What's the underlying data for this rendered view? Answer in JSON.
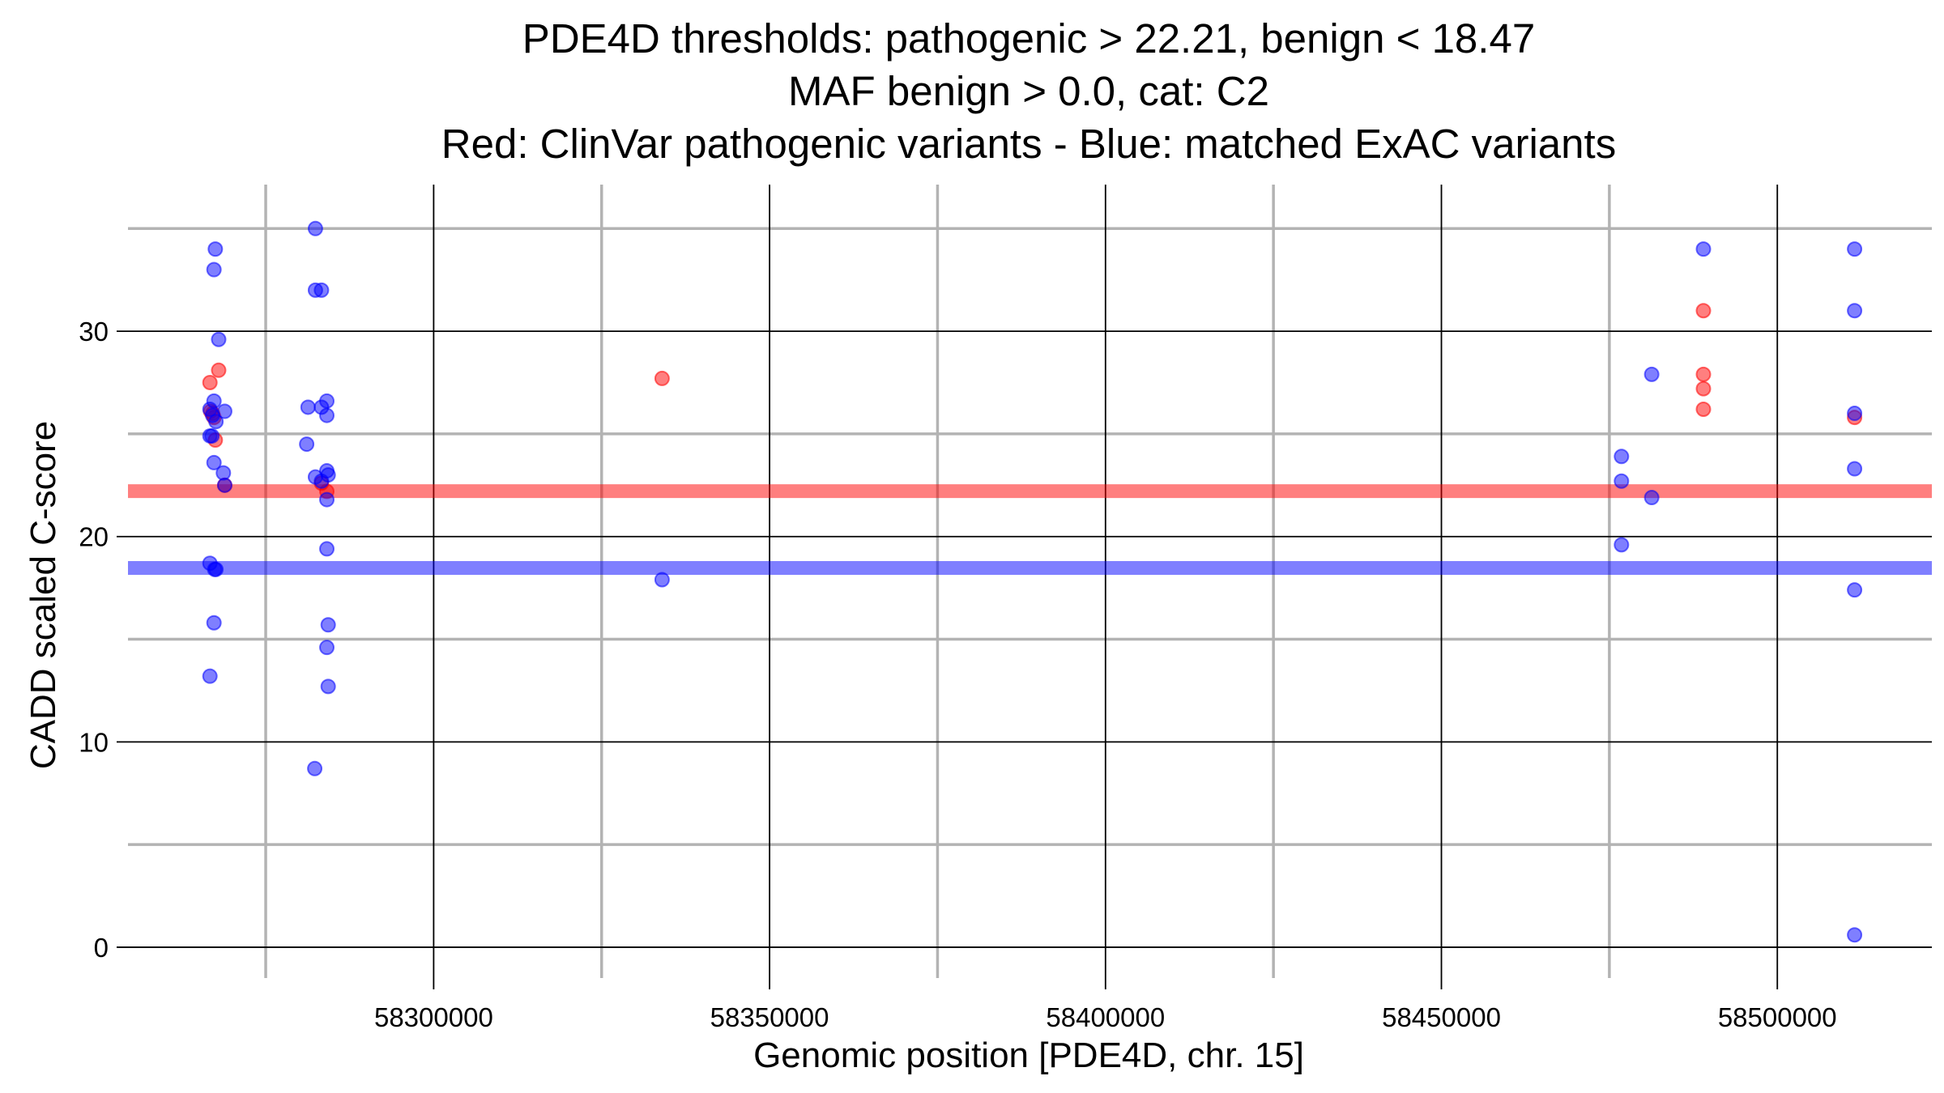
{
  "chart_data": {
    "type": "scatter",
    "title_lines": [
      "PDE4D thresholds: pathogenic > 22.21, benign < 18.47",
      "MAF benign > 0.0, cat: C2",
      "Red: ClinVar pathogenic variants - Blue: matched ExAC variants"
    ],
    "xlabel": "Genomic position [PDE4D, chr. 15]",
    "ylabel": "CADD scaled C-score",
    "xlim": [
      58254500,
      58523000
    ],
    "ylim": [
      -1.5,
      35.8
    ],
    "x_ticks": [
      58300000,
      58350000,
      58400000,
      58450000,
      58500000
    ],
    "x_tick_labels": [
      "58300000",
      "58350000",
      "58400000",
      "58450000",
      "58500000"
    ],
    "x_minor_grid": [
      58275000,
      58325000,
      58375000,
      58425000,
      58475000
    ],
    "y_ticks": [
      0,
      10,
      20,
      30
    ],
    "y_tick_labels": [
      "0",
      "10",
      "20",
      "30"
    ],
    "y_minor_grid": [
      5,
      15,
      25,
      35
    ],
    "thresholds": [
      {
        "name": "pathogenic",
        "value": 22.21,
        "color": "#ff0000"
      },
      {
        "name": "benign",
        "value": 18.47,
        "color": "#0000ff"
      }
    ],
    "series": [
      {
        "name": "ClinVar pathogenic",
        "color": "#ff0000",
        "points": [
          [
            58266700,
            27.5
          ],
          [
            58267100,
            26.0
          ],
          [
            58267500,
            24.7
          ],
          [
            58268000,
            28.1
          ],
          [
            58266800,
            26.1
          ],
          [
            58267300,
            25.8
          ],
          [
            58268900,
            22.5
          ],
          [
            58283300,
            22.6
          ],
          [
            58284100,
            22.2
          ],
          [
            58334000,
            27.7
          ],
          [
            58489000,
            31.0
          ],
          [
            58489000,
            27.9
          ],
          [
            58489000,
            27.2
          ],
          [
            58489000,
            26.2
          ],
          [
            58511500,
            25.8
          ]
        ]
      },
      {
        "name": "matched ExAC",
        "color": "#0000ff",
        "points": [
          [
            58267500,
            34.0
          ],
          [
            58267300,
            33.0
          ],
          [
            58268000,
            29.6
          ],
          [
            58267300,
            26.6
          ],
          [
            58266700,
            26.2
          ],
          [
            58268900,
            26.1
          ],
          [
            58267100,
            25.9
          ],
          [
            58267600,
            25.6
          ],
          [
            58266700,
            24.9
          ],
          [
            58267000,
            24.9
          ],
          [
            58267300,
            23.6
          ],
          [
            58268700,
            23.1
          ],
          [
            58268900,
            22.5
          ],
          [
            58266700,
            18.7
          ],
          [
            58267400,
            18.4
          ],
          [
            58267600,
            18.4
          ],
          [
            58267300,
            15.8
          ],
          [
            58266700,
            13.2
          ],
          [
            58282400,
            35.0
          ],
          [
            58282400,
            32.0
          ],
          [
            58283300,
            32.0
          ],
          [
            58281300,
            26.3
          ],
          [
            58283300,
            26.3
          ],
          [
            58284100,
            26.6
          ],
          [
            58284100,
            25.9
          ],
          [
            58281100,
            24.5
          ],
          [
            58282400,
            22.9
          ],
          [
            58283300,
            22.7
          ],
          [
            58284100,
            23.2
          ],
          [
            58284300,
            23.0
          ],
          [
            58284100,
            21.8
          ],
          [
            58284100,
            19.4
          ],
          [
            58284300,
            15.7
          ],
          [
            58284100,
            14.6
          ],
          [
            58284300,
            12.7
          ],
          [
            58282300,
            8.7
          ],
          [
            58334000,
            17.9
          ],
          [
            58476800,
            23.9
          ],
          [
            58476800,
            22.7
          ],
          [
            58476800,
            19.6
          ],
          [
            58481300,
            27.9
          ],
          [
            58481300,
            21.9
          ],
          [
            58489000,
            34.0
          ],
          [
            58511500,
            34.0
          ],
          [
            58511500,
            31.0
          ],
          [
            58511500,
            26.0
          ],
          [
            58511500,
            23.3
          ],
          [
            58511500,
            17.4
          ],
          [
            58511500,
            0.6
          ]
        ]
      }
    ]
  }
}
